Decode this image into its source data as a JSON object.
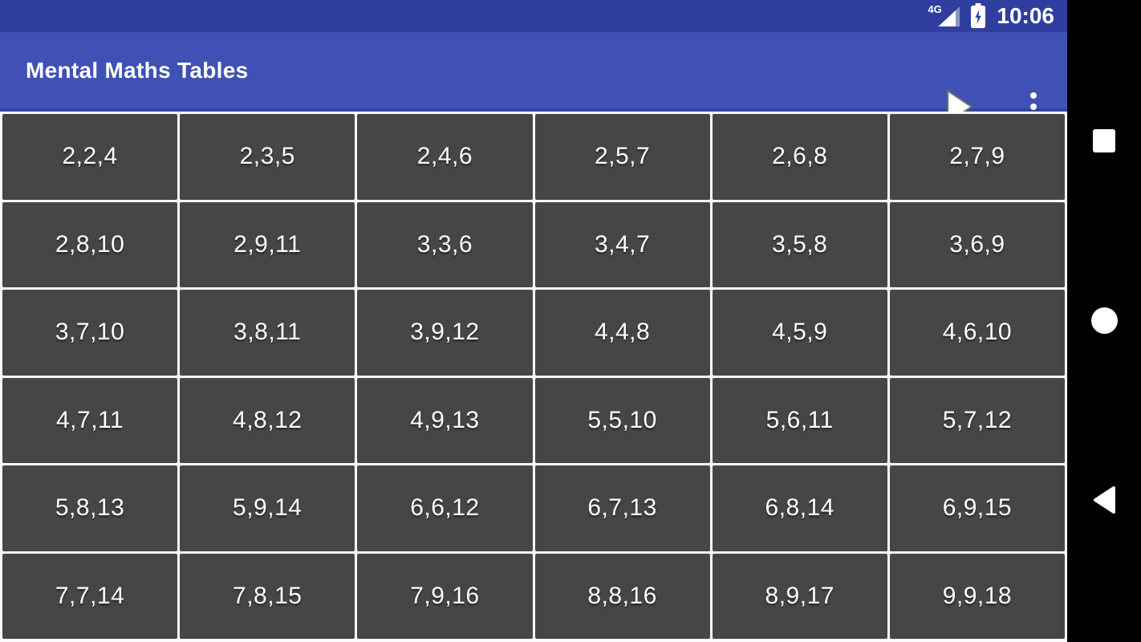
{
  "status_bar": {
    "time": "10:06",
    "network_label": "4G",
    "icons": [
      "signal-strength-icon",
      "battery-charging-icon"
    ]
  },
  "app_bar": {
    "title": "Mental Maths Tables",
    "icons": [
      "play-icon",
      "overflow-menu-icon"
    ]
  },
  "grid": {
    "rows": [
      [
        "2,2,4",
        "2,3,5",
        "2,4,6",
        "2,5,7",
        "2,6,8",
        "2,7,9"
      ],
      [
        "2,8,10",
        "2,9,11",
        "3,3,6",
        "3,4,7",
        "3,5,8",
        "3,6,9"
      ],
      [
        "3,7,10",
        "3,8,11",
        "3,9,12",
        "4,4,8",
        "4,5,9",
        "4,6,10"
      ],
      [
        "4,7,11",
        "4,8,12",
        "4,9,13",
        "5,5,10",
        "5,6,11",
        "5,7,12"
      ],
      [
        "5,8,13",
        "5,9,14",
        "6,6,12",
        "6,7,13",
        "6,8,14",
        "6,9,15"
      ],
      [
        "7,7,14",
        "7,8,15",
        "7,9,16",
        "8,8,16",
        "8,9,17",
        "9,9,18"
      ]
    ]
  },
  "nav_bar": {
    "buttons": [
      "recents",
      "home",
      "back"
    ]
  },
  "colors": {
    "status_bar": "#303f9f",
    "app_bar": "#3f51b5",
    "cell_background": "#464646",
    "cell_border": "#fafafa",
    "text": "#ffffff",
    "nav_background": "#000000"
  }
}
